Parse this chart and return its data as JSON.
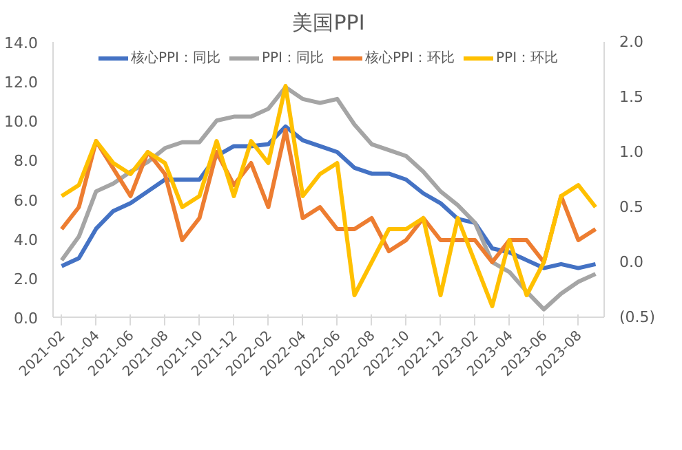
{
  "chart_data": {
    "type": "line",
    "title": "美国PPI",
    "categories": [
      "2021-02",
      null,
      "2021-04",
      null,
      "2021-06",
      null,
      "2021-08",
      null,
      "2021-10",
      null,
      "2021-12",
      null,
      "2022-02",
      null,
      "2022-04",
      null,
      "2022-06",
      null,
      "2022-08",
      null,
      "2022-10",
      null,
      "2022-12",
      null,
      "2023-02",
      null,
      "2023-04",
      null,
      "2023-06",
      null,
      "2023-08",
      null
    ],
    "series": [
      {
        "name": "核心PPI：同比",
        "color": "#4472c4",
        "values": [
          2.6,
          3.0,
          4.5,
          5.4,
          5.8,
          6.4,
          7.0,
          7.0,
          7.0,
          8.2,
          8.7,
          8.7,
          8.8,
          9.7,
          9.0,
          8.7,
          8.4,
          7.6,
          7.3,
          7.3,
          7.0,
          6.3,
          5.8,
          5.0,
          4.8,
          3.5,
          3.3,
          2.9,
          2.5,
          2.7,
          2.5,
          2.7
        ]
      },
      {
        "name": "PPI：同比",
        "color": "#a5a5a5",
        "values": [
          2.9,
          4.1,
          6.4,
          6.8,
          7.4,
          7.9,
          8.6,
          8.9,
          8.9,
          10.0,
          10.2,
          10.2,
          10.6,
          11.7,
          11.1,
          10.9,
          11.1,
          9.8,
          8.8,
          8.5,
          8.2,
          7.4,
          6.4,
          5.7,
          4.8,
          2.8,
          2.3,
          1.3,
          0.4,
          1.2,
          1.8,
          2.2
        ]
      },
      {
        "name": "核心PPI：环比",
        "color": "#ed7d31",
        "axis": "y2",
        "values": [
          0.3,
          0.5,
          1.1,
          0.85,
          0.6,
          1.0,
          0.8,
          0.2,
          0.4,
          1.0,
          0.7,
          0.9,
          0.5,
          1.2,
          0.4,
          0.5,
          0.3,
          0.3,
          0.4,
          0.1,
          0.2,
          0.4,
          0.2,
          0.2,
          0.2,
          0.0,
          0.2,
          0.2,
          0.0,
          0.6,
          0.2,
          0.3
        ]
      },
      {
        "name": "PPI：环比",
        "color": "#ffc000",
        "axis": "y2",
        "values": [
          0.6,
          0.7,
          1.1,
          0.9,
          0.8,
          1.0,
          0.9,
          0.5,
          0.6,
          1.1,
          0.6,
          1.1,
          0.9,
          1.6,
          0.6,
          0.8,
          0.9,
          -0.3,
          0.0,
          0.3,
          0.3,
          0.4,
          -0.3,
          0.4,
          0.0,
          -0.4,
          0.2,
          -0.3,
          0.0,
          0.6,
          0.7,
          0.5
        ]
      }
    ],
    "ylim": [
      0,
      14
    ],
    "yticks": [
      {
        "value": 0,
        "label": "0.0"
      },
      {
        "value": 2,
        "label": "2.0"
      },
      {
        "value": 4,
        "label": "4.0"
      },
      {
        "value": 6,
        "label": "6.0"
      },
      {
        "value": 8,
        "label": "8.0"
      },
      {
        "value": 10,
        "label": "10.0"
      },
      {
        "value": 12,
        "label": "12.0"
      },
      {
        "value": 14,
        "label": "14.0"
      }
    ],
    "y2lim": [
      -0.5,
      2
    ],
    "y2ticks": [
      {
        "value": -0.5,
        "label": "(0.5)"
      },
      {
        "value": 0,
        "label": "0.0"
      },
      {
        "value": 0.5,
        "label": "0.5"
      },
      {
        "value": 1,
        "label": "1.0"
      },
      {
        "value": 1.5,
        "label": "1.5"
      },
      {
        "value": 2,
        "label": "2.0"
      }
    ],
    "legend": "top",
    "grid": false,
    "marker": "none",
    "line_style": "solid"
  }
}
